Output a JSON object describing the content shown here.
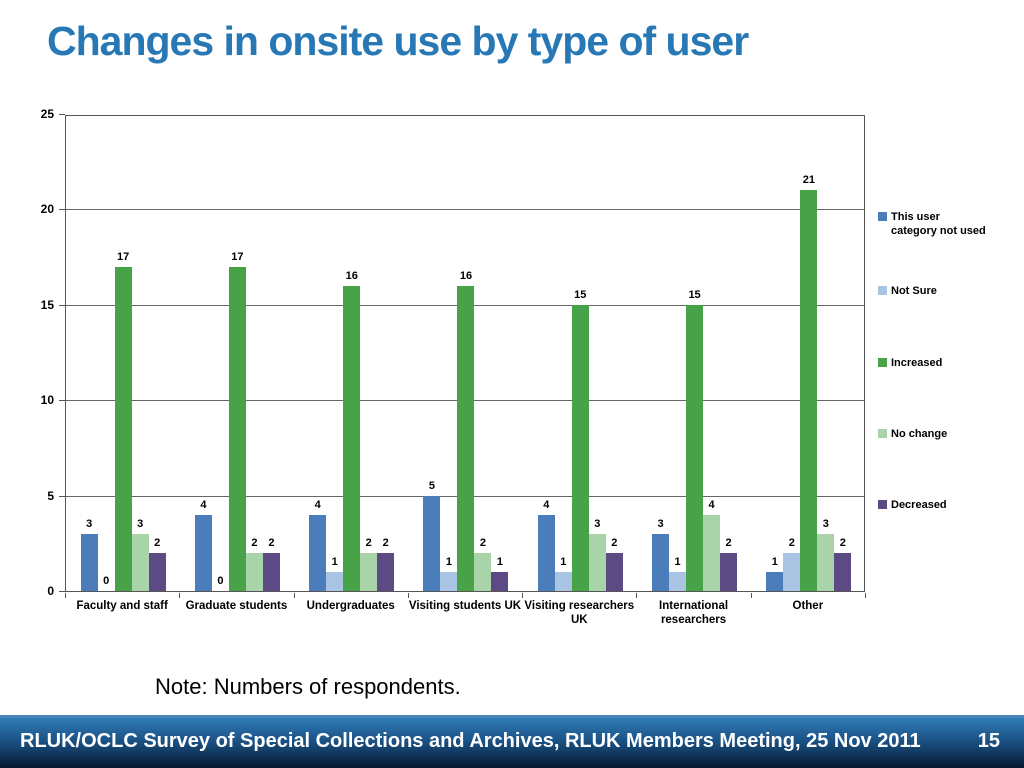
{
  "slide": {
    "title": "Changes in onsite use by type of user",
    "note": "Note: Numbers of respondents.",
    "footer": {
      "text": "RLUK/OCLC Survey of Special Collections and Archives, RLUK Members Meeting, 25 Nov 2011",
      "page_number": "15"
    }
  },
  "colors": {
    "title_blue": "#2878b6",
    "gridline": "#666666",
    "axis": "#555555",
    "footer_gradient_top": "#2f7cb8",
    "footer_gradient_bottom": "#071930"
  },
  "chart_data": {
    "type": "bar",
    "title": "",
    "xlabel": "",
    "ylabel": "",
    "categories": [
      "Faculty and staff",
      "Graduate students",
      "Undergraduates",
      "Visiting students UK",
      "Visiting researchers UK",
      "International researchers",
      "Other"
    ],
    "series": [
      {
        "name": "This user category not used",
        "color": "#4b7dbb",
        "values": [
          3,
          4,
          4,
          5,
          4,
          3,
          1
        ]
      },
      {
        "name": "Not Sure",
        "color": "#a9c3e3",
        "values": [
          0,
          0,
          1,
          1,
          1,
          1,
          2
        ]
      },
      {
        "name": "Increased",
        "color": "#48a348",
        "values": [
          17,
          17,
          16,
          16,
          15,
          15,
          21
        ]
      },
      {
        "name": "No change",
        "color": "#a9d3a9",
        "values": [
          3,
          2,
          2,
          2,
          3,
          4,
          3
        ]
      },
      {
        "name": "Decreased",
        "color": "#5c4a85",
        "values": [
          2,
          2,
          2,
          1,
          2,
          2,
          2
        ]
      }
    ],
    "ylim": [
      0,
      25
    ],
    "ytick_interval": 5,
    "grid": true,
    "data_labels": true,
    "legend_position": "right"
  }
}
